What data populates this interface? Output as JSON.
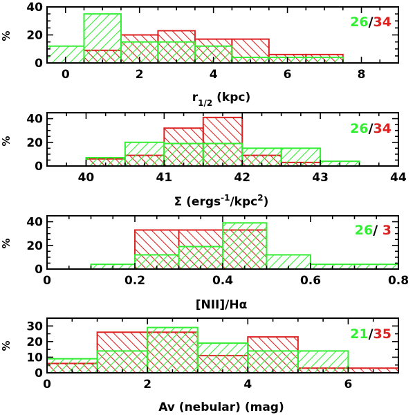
{
  "colors": {
    "green": "#33ee33",
    "red": "#dd2222",
    "axis": "#000000"
  },
  "chart_data": [
    {
      "type": "bar",
      "subtype": "histogram",
      "title": "",
      "xlabel": "r",
      "xlabel_sub": "1/2",
      "xlabel_suffix": " (kpc)",
      "ylabel": "%",
      "xlim": [
        -0.5,
        9
      ],
      "ylim": [
        0,
        40
      ],
      "xticks": [
        0,
        2,
        4,
        6,
        8
      ],
      "xtick_labels": [
        "0",
        "2",
        "4",
        "6",
        "8"
      ],
      "xminor_step": 0.5,
      "yticks": [
        0,
        20,
        40
      ],
      "ytick_labels": [
        "0",
        "20",
        "40"
      ],
      "yminor_step": 5,
      "series": [
        {
          "name": "red sample",
          "color": "red",
          "bins": [
            [
              0.5,
              1.5,
              9
            ],
            [
              1.5,
              2.5,
              20
            ],
            [
              2.5,
              3.5,
              23
            ],
            [
              3.5,
              4.5,
              17
            ],
            [
              4.5,
              5.5,
              17
            ],
            [
              5.5,
              6.5,
              6
            ],
            [
              6.5,
              7.5,
              6
            ]
          ]
        },
        {
          "name": "green sample",
          "color": "green",
          "bins": [
            [
              -0.5,
              0.5,
              12
            ],
            [
              0.5,
              1.5,
              35
            ],
            [
              1.5,
              2.5,
              15
            ],
            [
              2.5,
              3.5,
              15
            ],
            [
              3.5,
              4.5,
              12
            ],
            [
              4.5,
              5.5,
              4
            ],
            [
              5.5,
              6.5,
              4
            ],
            [
              6.5,
              7.5,
              4
            ]
          ]
        }
      ],
      "counts": {
        "green": "26",
        "sep": "/",
        "red": "34"
      }
    },
    {
      "type": "bar",
      "subtype": "histogram",
      "title": "",
      "xlabel": "Σ (ergs",
      "xlabel_sup1": "-1",
      "xlabel_mid": "/kpc",
      "xlabel_sup2": "2",
      "xlabel_suffix": ")",
      "ylabel": "%",
      "xlim": [
        39.5,
        44
      ],
      "ylim": [
        0,
        45
      ],
      "xticks": [
        40,
        41,
        42,
        43,
        44
      ],
      "xtick_labels": [
        "40",
        "41",
        "42",
        "43",
        "44"
      ],
      "xminor_step": 0.25,
      "yticks": [
        0,
        20,
        40
      ],
      "ytick_labels": [
        "0",
        "20",
        "40"
      ],
      "yminor_step": 5,
      "series": [
        {
          "name": "red sample",
          "color": "red",
          "bins": [
            [
              40,
              40.5,
              6
            ],
            [
              40.5,
              41,
              9
            ],
            [
              41,
              41.5,
              32
            ],
            [
              41.5,
              42,
              41
            ],
            [
              42,
              42.5,
              9
            ],
            [
              42.5,
              43,
              3
            ]
          ]
        },
        {
          "name": "green sample",
          "color": "green",
          "bins": [
            [
              40,
              40.5,
              7
            ],
            [
              40.5,
              41,
              20
            ],
            [
              41,
              41.5,
              19
            ],
            [
              41.5,
              42,
              19
            ],
            [
              42,
              42.5,
              15
            ],
            [
              42.5,
              43,
              15
            ],
            [
              43,
              43.5,
              4
            ]
          ]
        }
      ],
      "counts": {
        "green": "26",
        "sep": "/",
        "red": "34"
      }
    },
    {
      "type": "bar",
      "subtype": "histogram",
      "title": "",
      "xlabel": "[NII]/Hα",
      "ylabel": "%",
      "xlim": [
        0,
        0.8
      ],
      "ylim": [
        0,
        45
      ],
      "xticks": [
        0,
        0.2,
        0.4,
        0.6,
        0.8
      ],
      "xtick_labels": [
        "0",
        "0.2",
        "0.4",
        "0.6",
        "0.8"
      ],
      "xminor_step": 0.05,
      "yticks": [
        0,
        20,
        40
      ],
      "ytick_labels": [
        "0",
        "20",
        "40"
      ],
      "yminor_step": 5,
      "series": [
        {
          "name": "red sample",
          "color": "red",
          "bins": [
            [
              0.2,
              0.3,
              33
            ],
            [
              0.3,
              0.4,
              33
            ],
            [
              0.4,
              0.5,
              33
            ]
          ]
        },
        {
          "name": "green sample",
          "color": "green",
          "bins": [
            [
              0.1,
              0.2,
              4
            ],
            [
              0.2,
              0.3,
              12
            ],
            [
              0.3,
              0.4,
              19
            ],
            [
              0.4,
              0.5,
              39
            ],
            [
              0.5,
              0.6,
              12
            ],
            [
              0.6,
              0.7,
              4
            ],
            [
              0.7,
              0.8,
              4
            ]
          ]
        }
      ],
      "counts": {
        "green": "26",
        "sep": "/ ",
        "red": "3"
      }
    },
    {
      "type": "bar",
      "subtype": "histogram",
      "title": "",
      "xlabel": "Av (nebular) (mag)",
      "ylabel": "%",
      "xlim": [
        0,
        7
      ],
      "ylim": [
        0,
        35
      ],
      "xticks": [
        0,
        2,
        4,
        6
      ],
      "xtick_labels": [
        "0",
        "2",
        "4",
        "6"
      ],
      "xminor_step": 0.5,
      "yticks": [
        0,
        10,
        20,
        30
      ],
      "ytick_labels": [
        "0",
        "10",
        "20",
        "30"
      ],
      "yminor_step": 5,
      "series": [
        {
          "name": "red sample",
          "color": "red",
          "bins": [
            [
              0,
              1,
              6
            ],
            [
              1,
              2,
              26
            ],
            [
              2,
              3,
              26
            ],
            [
              3,
              4,
              11
            ],
            [
              4,
              5,
              23
            ],
            [
              5,
              6,
              3
            ],
            [
              6,
              7,
              3
            ]
          ]
        },
        {
          "name": "green sample",
          "color": "green",
          "bins": [
            [
              0,
              1,
              9
            ],
            [
              1,
              2,
              14
            ],
            [
              2,
              3,
              29
            ],
            [
              3,
              4,
              19
            ],
            [
              4,
              5,
              14
            ],
            [
              5,
              6,
              14
            ]
          ]
        }
      ],
      "counts": {
        "green": "21",
        "sep": "/",
        "red": "35"
      }
    }
  ]
}
